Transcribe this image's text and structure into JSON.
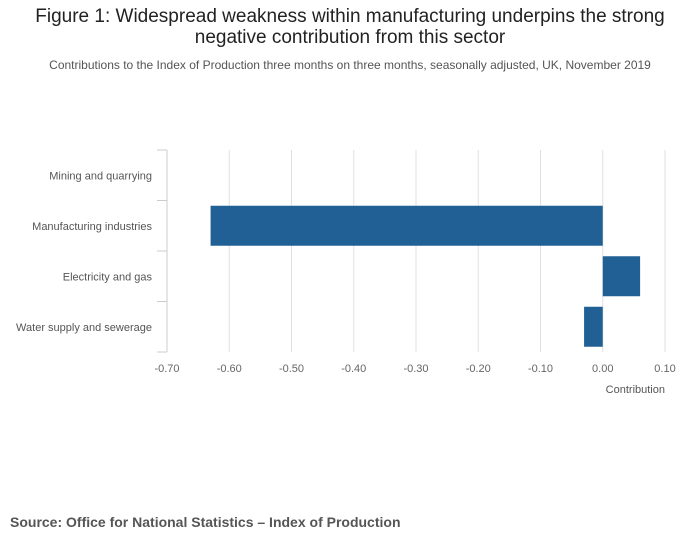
{
  "title": "Figure 1: Widespread weakness within manufacturing underpins the strong negative contribution from this sector",
  "subtitle": "Contributions to the Index of Production three months on three months, seasonally adjusted, UK, November 2019",
  "source": "Source: Office for National Statistics – Index of Production",
  "colors": {
    "bar": "#206095",
    "grid": "#e0e0e0",
    "axis": "#cccccc",
    "tick_text": "#666666"
  },
  "chart_data": {
    "type": "bar",
    "orientation": "horizontal",
    "categories": [
      "Mining and quarrying",
      "Manufacturing industries",
      "Electricity and gas",
      "Water supply and sewerage"
    ],
    "values": [
      0.0,
      -0.63,
      0.06,
      -0.03
    ],
    "xlabel": "Contribution",
    "ylabel": "",
    "xlim": [
      -0.7,
      0.1
    ],
    "xticks": [
      -0.7,
      -0.6,
      -0.5,
      -0.4,
      -0.3,
      -0.2,
      -0.1,
      0.0,
      0.1
    ],
    "xtick_labels": [
      "-0.70",
      "-0.60",
      "-0.50",
      "-0.40",
      "-0.30",
      "-0.20",
      "-0.10",
      "0.00",
      "0.10"
    ],
    "grid": true,
    "legend": "none"
  }
}
